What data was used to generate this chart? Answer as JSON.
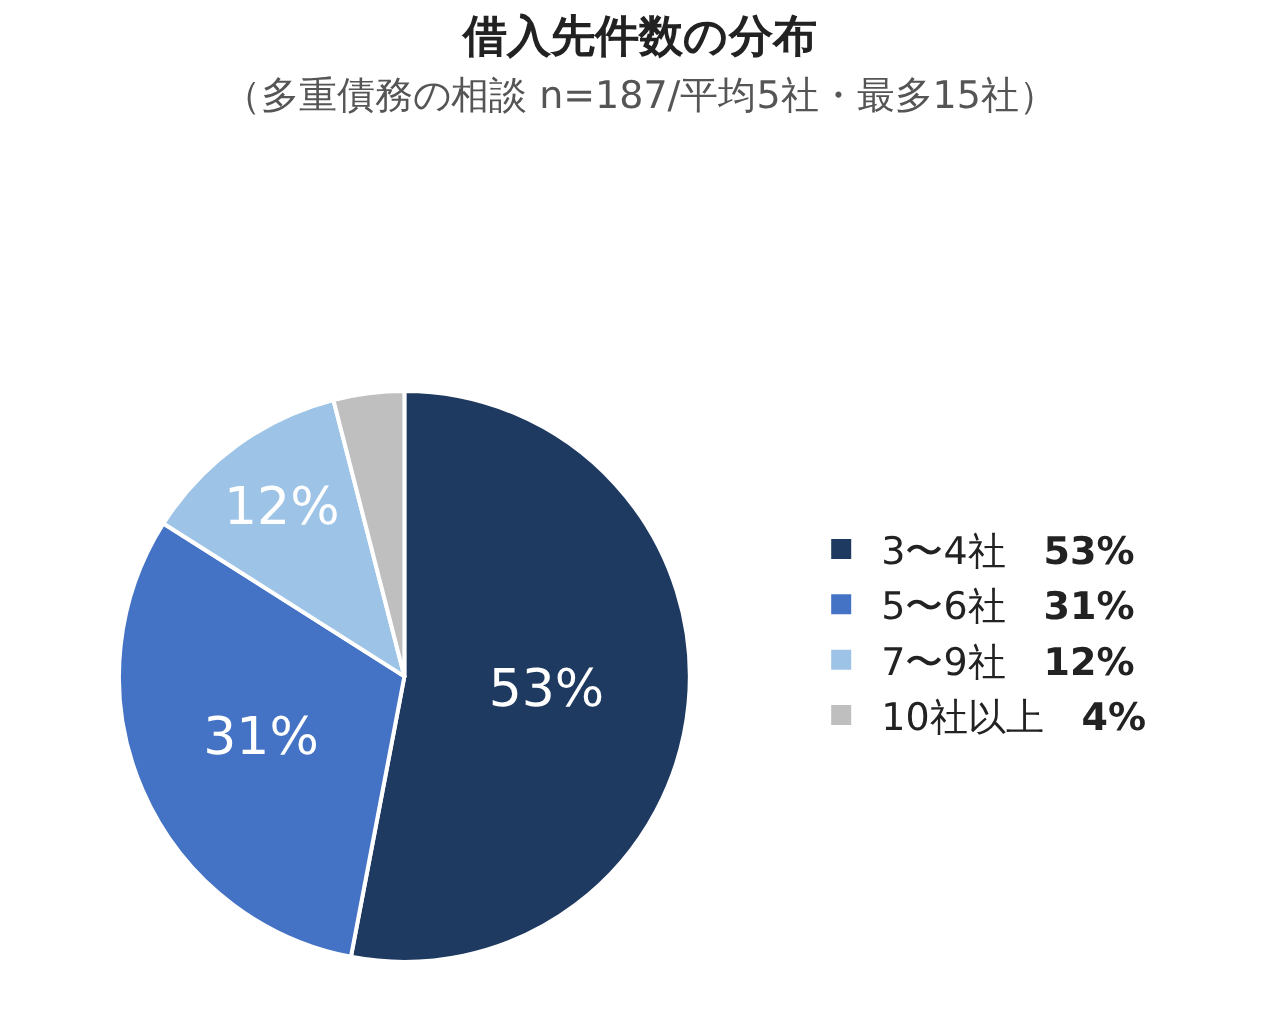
{
  "chart_data": {
    "type": "pie",
    "title": "借入先件数の分布",
    "subtitle": "（多重債務の相談 n=187/平均5社・最多15社）",
    "categories": [
      "3〜4社",
      "5〜6社",
      "7〜9社",
      "10社以上"
    ],
    "values": [
      53,
      31,
      12,
      4
    ],
    "colors": [
      "#1f3a60",
      "#4472c4",
      "#9dc3e6",
      "#bfbfbf"
    ],
    "value_labels": [
      "53%",
      "31%",
      "12%",
      "4%"
    ],
    "legend": "right"
  }
}
